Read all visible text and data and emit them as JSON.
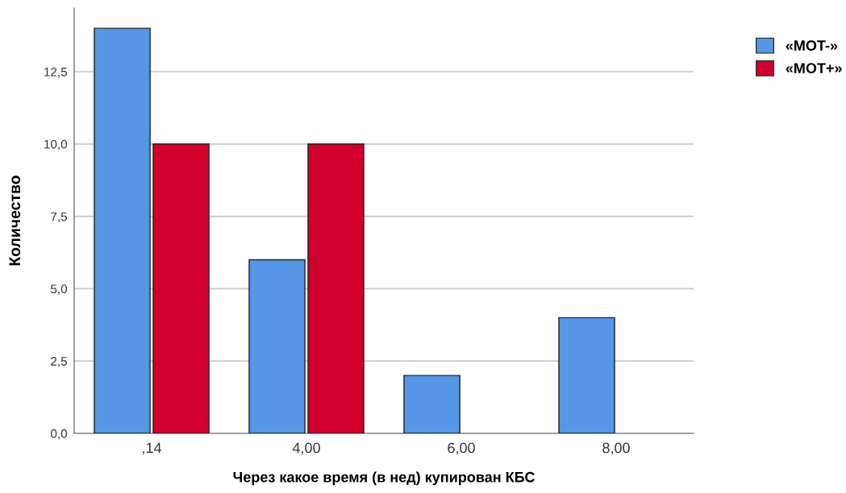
{
  "chart_data": {
    "type": "bar",
    "xlabel": "Через какое время (в нед) купирован КБС",
    "ylabel": "Количество",
    "categories": [
      ",14",
      "4,00",
      "6,00",
      "8,00"
    ],
    "series": [
      {
        "name": "«MOT-»",
        "color": "#5596e6",
        "values": [
          14,
          6,
          2,
          4
        ]
      },
      {
        "name": "«MOT+»",
        "color": "#d2002d",
        "values": [
          10,
          10,
          null,
          null
        ]
      }
    ],
    "ylim": [
      0,
      14.7
    ],
    "yticks": [
      {
        "value": 0,
        "label": "0,0"
      },
      {
        "value": 2.5,
        "label": "2,5"
      },
      {
        "value": 5,
        "label": "5,0"
      },
      {
        "value": 7.5,
        "label": "7,5"
      },
      {
        "value": 10,
        "label": "10,0"
      },
      {
        "value": 12.5,
        "label": "12,5"
      }
    ],
    "grid": "y",
    "legend": "top right"
  }
}
